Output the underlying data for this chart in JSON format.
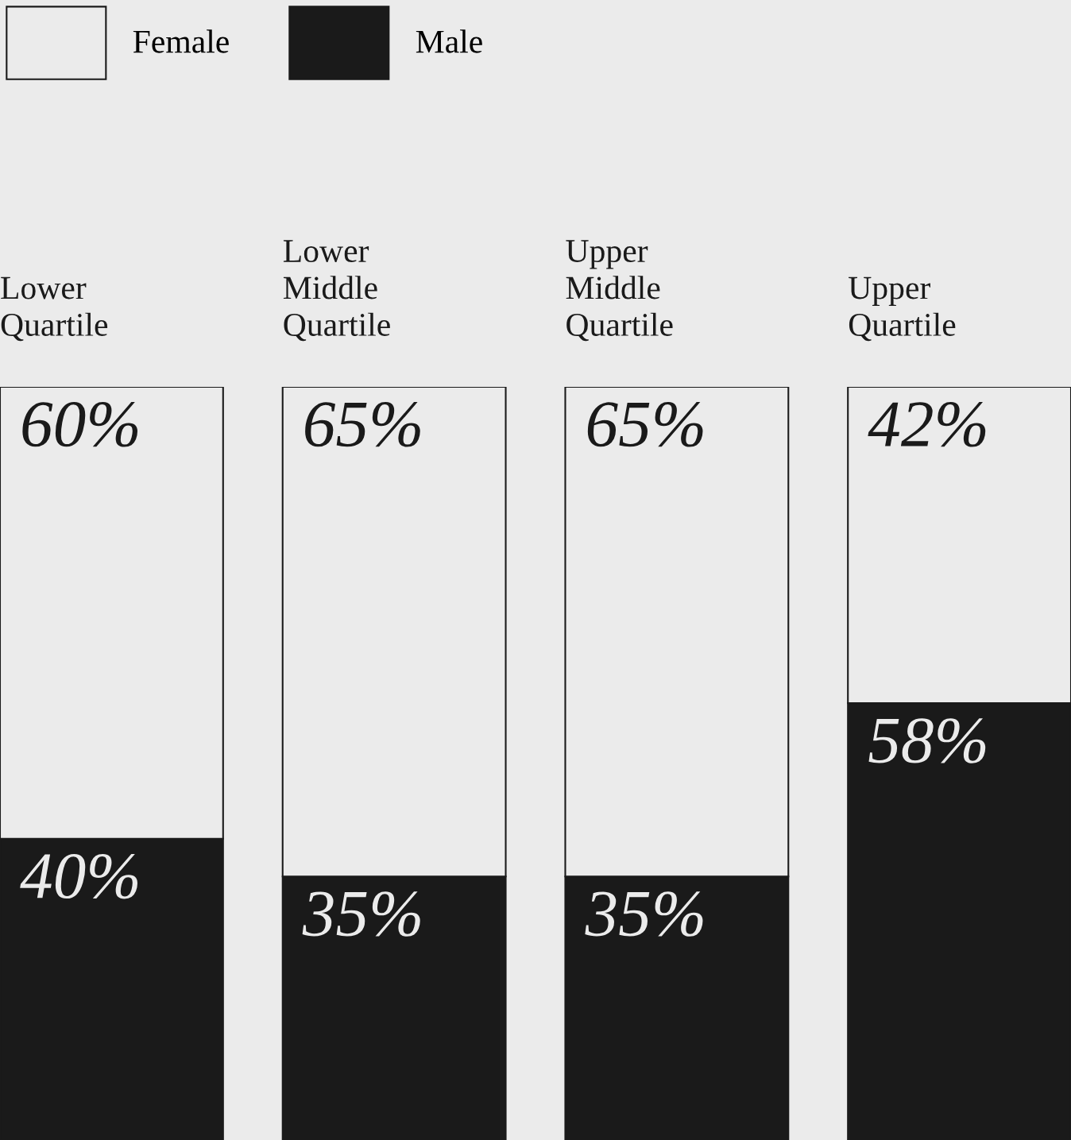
{
  "chart_data": {
    "type": "bar",
    "stacked": true,
    "legend": "top left",
    "categories": [
      "Lower Quartile",
      "Lower Middle Quartile",
      "Upper Middle Quartile",
      "Upper Quartile"
    ],
    "series": [
      {
        "name": "Male",
        "color": "#1a1a1a",
        "values": [
          40,
          35,
          35,
          58
        ],
        "value_labels": [
          "40%",
          "35%",
          "35%",
          "58%"
        ]
      },
      {
        "name": "Female",
        "color": "#ebebeb",
        "values": [
          60,
          65,
          65,
          42
        ],
        "value_labels": [
          "60%",
          "65%",
          "65%",
          "42%"
        ]
      }
    ]
  }
}
